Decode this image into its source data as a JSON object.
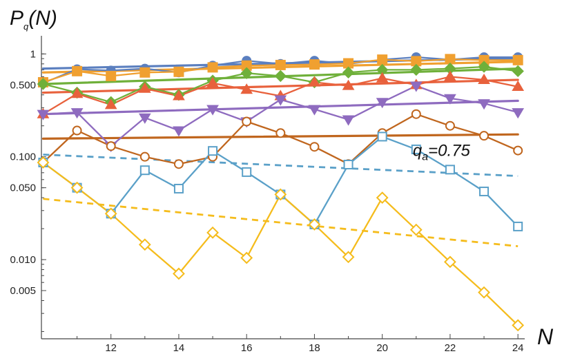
{
  "chart_data": {
    "type": "line",
    "ylabel_main": "P",
    "ylabel_sub": "q",
    "ylabel_arg": "(N)",
    "xlabel": "N",
    "x_ticks": [
      12,
      14,
      16,
      18,
      20,
      22,
      24
    ],
    "x_tick_labels": [
      "12",
      "14",
      "16",
      "18",
      "20",
      "22",
      "24"
    ],
    "y_ticks": [
      1,
      0.5,
      0.1,
      0.05,
      0.01,
      0.005
    ],
    "y_tick_labels": [
      "1",
      "0.500",
      "0.100",
      "0.050",
      "0.010",
      "0.005"
    ],
    "xlim": [
      9.95,
      24.2
    ],
    "ylim": [
      0.0017,
      1.5
    ],
    "y_scale": "log",
    "annotation": {
      "base": "q",
      "sub": "a",
      "rest": "=0.75",
      "anchor_x": 20.9,
      "anchor_y": 0.115
    },
    "series": [
      {
        "color": "#5b7fbf",
        "marker": "circle-filled",
        "x": [
          10,
          11,
          12,
          13,
          14,
          15,
          16,
          17,
          18,
          19,
          20,
          21,
          22,
          23,
          24
        ],
        "y": [
          0.52,
          0.71,
          0.69,
          0.72,
          0.66,
          0.77,
          0.86,
          0.8,
          0.86,
          0.8,
          0.88,
          0.93,
          0.88,
          0.93,
          0.93
        ],
        "fit": [
          0.72,
          0.91
        ]
      },
      {
        "color": "#f0a030",
        "marker": "square-filled",
        "x": [
          10,
          11,
          12,
          13,
          14,
          15,
          16,
          17,
          18,
          19,
          20,
          21,
          22,
          23,
          24
        ],
        "y": [
          0.53,
          0.68,
          0.61,
          0.66,
          0.67,
          0.74,
          0.77,
          0.78,
          0.79,
          0.81,
          0.88,
          0.85,
          0.89,
          0.87,
          0.87
        ],
        "fit": [
          0.66,
          0.84
        ]
      },
      {
        "color": "#6fb03a",
        "marker": "diamond-filled",
        "x": [
          10,
          11,
          12,
          13,
          14,
          15,
          16,
          17,
          18,
          19,
          20,
          21,
          22,
          23,
          24
        ],
        "y": [
          0.51,
          0.42,
          0.34,
          0.48,
          0.4,
          0.55,
          0.65,
          0.61,
          0.53,
          0.66,
          0.7,
          0.7,
          0.72,
          0.75,
          0.68
        ],
        "fit": [
          0.51,
          0.72
        ]
      },
      {
        "color": "#e8613c",
        "marker": "triangle-up-filled",
        "x": [
          10,
          11,
          12,
          13,
          14,
          15,
          16,
          17,
          18,
          19,
          20,
          21,
          22,
          23,
          24
        ],
        "y": [
          0.26,
          0.41,
          0.32,
          0.46,
          0.39,
          0.52,
          0.45,
          0.39,
          0.53,
          0.49,
          0.58,
          0.5,
          0.6,
          0.56,
          0.48
        ],
        "fit": [
          0.42,
          0.56
        ]
      },
      {
        "color": "#8e6bbf",
        "marker": "triangle-down-filled",
        "x": [
          10,
          11,
          12,
          13,
          14,
          15,
          16,
          17,
          18,
          19,
          20,
          21,
          22,
          23,
          24
        ],
        "y": [
          0.26,
          0.27,
          0.127,
          0.24,
          0.18,
          0.29,
          0.22,
          0.36,
          0.29,
          0.23,
          0.34,
          0.49,
          0.37,
          0.33,
          0.27
        ],
        "fit": [
          0.26,
          0.35
        ]
      },
      {
        "color": "#c0661e",
        "marker": "circle-open",
        "x": [
          10,
          11,
          12,
          13,
          14,
          15,
          16,
          17,
          18,
          19,
          20,
          21,
          22,
          23,
          24
        ],
        "y": [
          0.088,
          0.18,
          0.127,
          0.1,
          0.085,
          0.1,
          0.22,
          0.17,
          0.125,
          0.085,
          0.17,
          0.26,
          0.2,
          0.16,
          0.115
        ],
        "fit": [
          0.15,
          0.165
        ]
      },
      {
        "color": "#5aa0c8",
        "marker": "square-open",
        "x": [
          10,
          11,
          12,
          13,
          14,
          15,
          16,
          17,
          18,
          19,
          20,
          21,
          22,
          23,
          24
        ],
        "y": [
          0.088,
          0.05,
          0.028,
          0.074,
          0.049,
          0.114,
          0.071,
          0.043,
          0.022,
          0.084,
          0.157,
          0.118,
          0.075,
          0.046,
          0.021
        ],
        "fit": [
          0.105,
          0.065
        ],
        "fit_dashed": true
      },
      {
        "color": "#f5bc1c",
        "marker": "diamond-open",
        "x": [
          10,
          11,
          12,
          13,
          14,
          15,
          16,
          17,
          18,
          19,
          20,
          21,
          22,
          23,
          24
        ],
        "y": [
          0.088,
          0.05,
          0.028,
          0.014,
          0.0073,
          0.0183,
          0.0104,
          0.043,
          0.022,
          0.0106,
          0.04,
          0.0195,
          0.0095,
          0.0048,
          0.0023
        ],
        "fit": [
          0.039,
          0.0135
        ],
        "fit_dashed": true
      }
    ]
  }
}
